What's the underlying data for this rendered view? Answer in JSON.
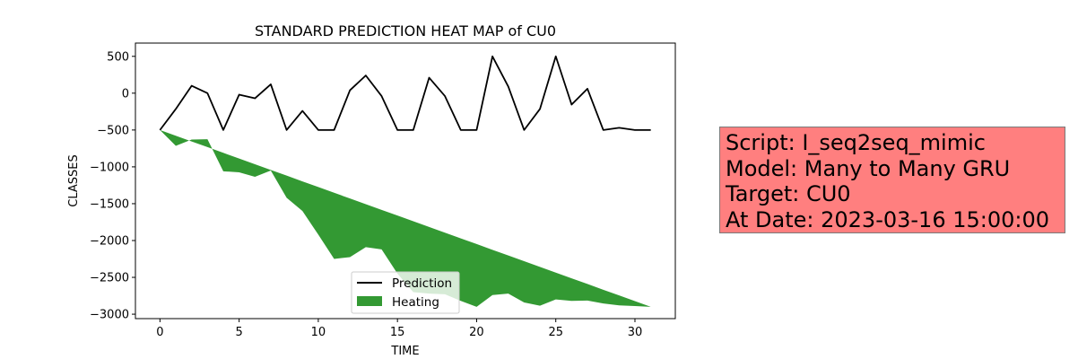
{
  "chart_data": {
    "type": "line",
    "title": "STANDARD PREDICTION HEAT MAP of CU0",
    "xlabel": "TIME",
    "ylabel": "CLASSES",
    "xlim": [
      -1.55,
      32.55
    ],
    "ylim": [
      -3060,
      680
    ],
    "xticks": [
      0,
      5,
      10,
      15,
      20,
      25,
      30
    ],
    "yticks": [
      500,
      0,
      -500,
      -1000,
      -1500,
      -2000,
      -2500,
      -3000
    ],
    "grid": false,
    "legend_position": "bottom-center",
    "series": [
      {
        "name": "Prediction",
        "kind": "line",
        "color": "#000000",
        "x": [
          0,
          1,
          2,
          3,
          4,
          5,
          6,
          7,
          8,
          9,
          10,
          11,
          12,
          13,
          14,
          15,
          16,
          17,
          18,
          19,
          20,
          21,
          22,
          23,
          24,
          25,
          26,
          27,
          28,
          29,
          30,
          31
        ],
        "y": [
          -500,
          -215,
          100,
          0,
          -500,
          -20,
          -70,
          120,
          -500,
          -240,
          -500,
          -500,
          40,
          240,
          -40,
          -500,
          -500,
          210,
          -40,
          -500,
          -500,
          500,
          90,
          -500,
          -215,
          500,
          -155,
          60,
          -500,
          -470,
          -500,
          -500
        ]
      },
      {
        "name": "Heating",
        "kind": "area",
        "color": "#339933",
        "x": [
          0,
          1,
          2,
          3,
          4,
          5,
          6,
          7,
          8,
          9,
          10,
          11,
          12,
          13,
          14,
          15,
          16,
          17,
          18,
          19,
          20,
          21,
          22,
          23,
          24,
          25,
          26,
          27,
          28,
          29,
          30,
          31
        ],
        "y1": [
          -500,
          -578,
          -655,
          -732,
          -810,
          -887,
          -965,
          -1042,
          -1119,
          -1197,
          -1274,
          -1352,
          -1429,
          -1506,
          -1584,
          -1661,
          -1739,
          -1816,
          -1894,
          -1971,
          -2048,
          -2126,
          -2203,
          -2281,
          -2358,
          -2435,
          -2513,
          -2590,
          -2668,
          -2745,
          -2823,
          -2900
        ],
        "y2": [
          -500,
          -715,
          -630,
          -625,
          -1060,
          -1075,
          -1135,
          -1050,
          -1420,
          -1600,
          -1920,
          -2250,
          -2225,
          -2090,
          -2120,
          -2450,
          -2700,
          -2720,
          -2730,
          -2820,
          -2900,
          -2740,
          -2720,
          -2840,
          -2885,
          -2800,
          -2820,
          -2815,
          -2855,
          -2880,
          -2890,
          -2900
        ]
      }
    ]
  },
  "info_box": {
    "line1": "Script: I_seq2seq_mimic",
    "line2": "Model: Many to Many GRU",
    "line3": "Target: CU0",
    "line4": "At Date: 2023-03-16 15:00:00",
    "background": "#ff7f7f"
  }
}
